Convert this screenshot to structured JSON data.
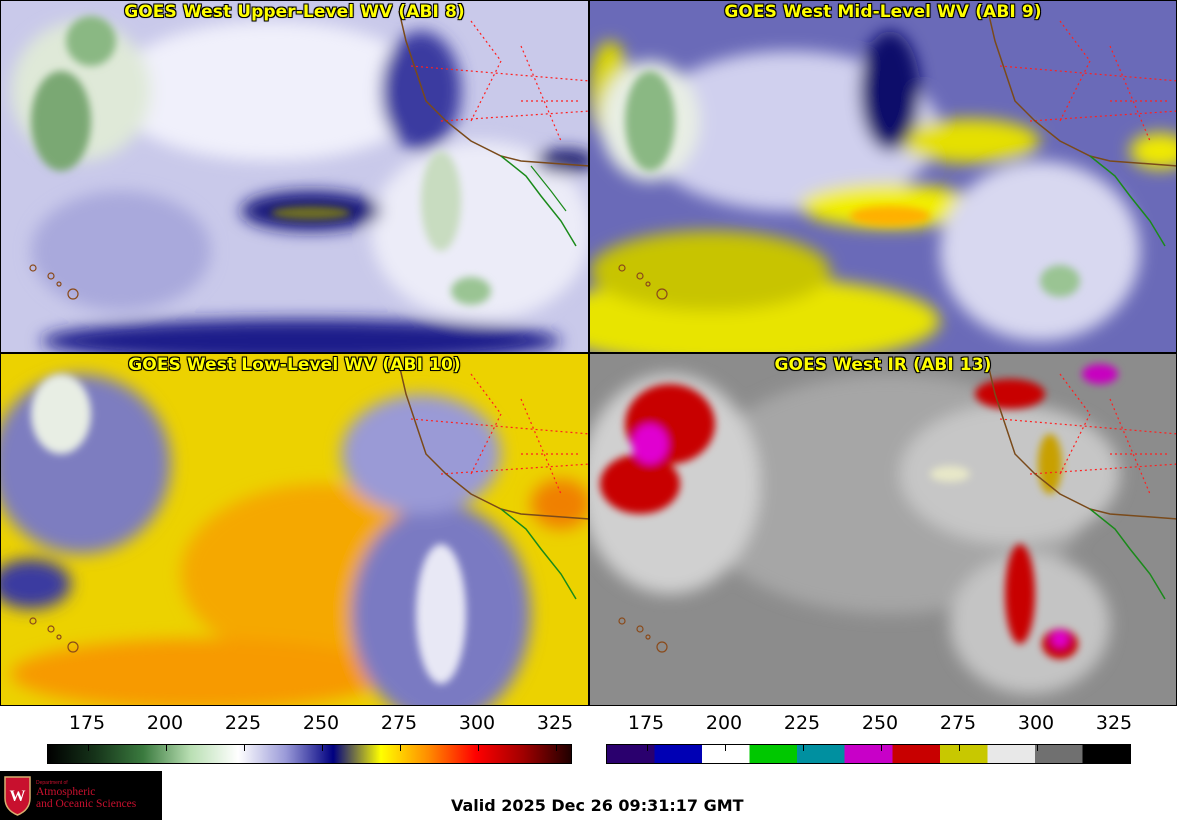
{
  "panels": [
    {
      "title": "GOES West Upper-Level WV (ABI 8)"
    },
    {
      "title": "GOES West Mid-Level WV (ABI 9)"
    },
    {
      "title": "GOES West Low-Level WV (ABI 10)"
    },
    {
      "title": "GOES West IR (ABI 13)"
    }
  ],
  "colorbars": {
    "wv": {
      "ticks": [
        "175",
        "200",
        "225",
        "250",
        "275",
        "300",
        "325"
      ],
      "colors": [
        "#000000",
        "#16341a",
        "#3a7a3e",
        "#b9dfb3",
        "#ffffff",
        "#9a9ad8",
        "#000080",
        "#ffff00",
        "#ff8c00",
        "#ff0000",
        "#a00000",
        "#200000"
      ]
    },
    "ir": {
      "ticks": [
        "175",
        "200",
        "225",
        "250",
        "275",
        "300",
        "325"
      ],
      "segments": [
        "#2a006e",
        "#0000b4",
        "#ffffff",
        "#00c800",
        "#0090a0",
        "#c800c8",
        "#c80000",
        "#c8c800",
        "#e8e8e8",
        "#707070",
        "#000000"
      ]
    }
  },
  "logo": {
    "dept_small": "Department of",
    "line1": "Atmospheric",
    "line2": "and Oceanic Sciences"
  },
  "footer": {
    "valid_text": "Valid 2025 Dec 26 09:31:17 GMT"
  }
}
